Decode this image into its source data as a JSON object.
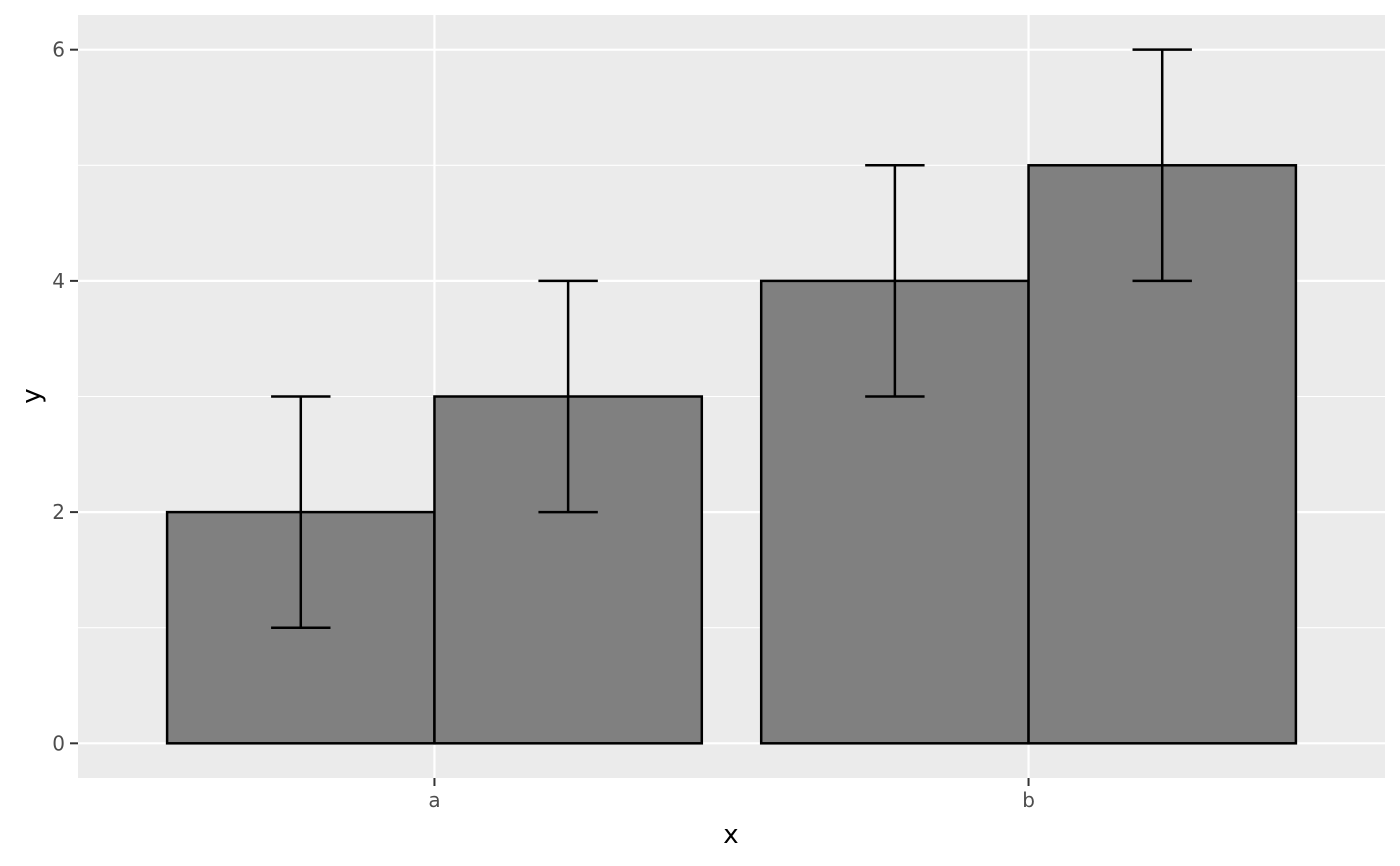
{
  "chart_data": {
    "type": "bar",
    "categories": [
      "a",
      "b"
    ],
    "series": [
      {
        "values": [
          2,
          4
        ],
        "error_low": [
          1,
          3
        ],
        "error_high": [
          3,
          5
        ]
      },
      {
        "values": [
          3,
          5
        ],
        "error_low": [
          2,
          4
        ],
        "error_high": [
          4,
          6
        ]
      }
    ],
    "xlabel": "x",
    "ylabel": "y",
    "ylim": [
      -0.3,
      6.3
    ],
    "yticks": [
      0,
      2,
      4,
      6
    ],
    "grid": true,
    "colors": {
      "panel_background": "#ebebeb",
      "grid_line": "#ffffff",
      "bar_fill": "#808080",
      "bar_outline": "#000000",
      "errorbar": "#000000"
    }
  }
}
